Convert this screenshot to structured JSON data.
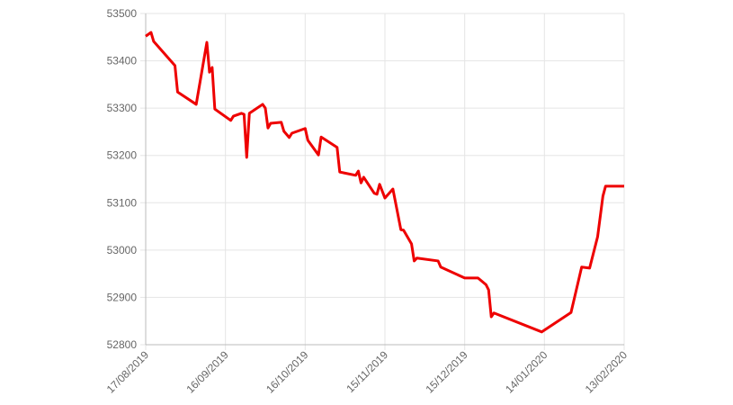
{
  "chart_data": {
    "type": "line",
    "x": [
      "2019-08-17",
      "2019-08-19",
      "2019-08-20",
      "2019-08-28",
      "2019-08-29",
      "2019-09-05",
      "2019-09-09",
      "2019-09-10",
      "2019-09-11",
      "2019-09-12",
      "2019-09-18",
      "2019-09-19",
      "2019-09-22",
      "2019-09-23",
      "2019-09-24",
      "2019-09-25",
      "2019-09-30",
      "2019-10-01",
      "2019-10-02",
      "2019-10-03",
      "2019-10-07",
      "2019-10-08",
      "2019-10-10",
      "2019-10-11",
      "2019-10-16",
      "2019-10-17",
      "2019-10-21",
      "2019-10-22",
      "2019-10-28",
      "2019-10-29",
      "2019-11-04",
      "2019-11-05",
      "2019-11-06",
      "2019-11-07",
      "2019-11-11",
      "2019-11-12",
      "2019-11-13",
      "2019-11-15",
      "2019-11-18",
      "2019-11-21",
      "2019-11-22",
      "2019-11-25",
      "2019-11-26",
      "2019-11-27",
      "2019-12-05",
      "2019-12-06",
      "2019-12-15",
      "2019-12-20",
      "2019-12-23",
      "2019-12-24",
      "2019-12-25",
      "2019-12-26",
      "2020-01-13",
      "2020-01-24",
      "2020-01-28",
      "2020-01-31",
      "2020-02-03",
      "2020-02-05",
      "2020-02-06",
      "2020-02-13"
    ],
    "series": [
      {
        "color": "#ee0000",
        "values": [
          53452,
          53460,
          53441,
          53390,
          53334,
          53308,
          53439,
          53376,
          53386,
          53298,
          53274,
          53283,
          53289,
          53287,
          53196,
          53289,
          53308,
          53300,
          53258,
          53268,
          53270,
          53251,
          53238,
          53247,
          53257,
          53232,
          53201,
          53239,
          53217,
          53165,
          53158,
          53167,
          53142,
          53154,
          53120,
          53118,
          53139,
          53110,
          53129,
          53043,
          53042,
          53013,
          52977,
          52983,
          52977,
          52964,
          52941,
          52941,
          52927,
          52916,
          52859,
          52867,
          52827,
          52868,
          52964,
          52962,
          53028,
          53114,
          53135,
          53135
        ]
      }
    ],
    "xlim": [
      "2019-08-17",
      "2020-02-13"
    ],
    "xticks": [
      {
        "value": "2019-08-17",
        "label": "17/08/2019"
      },
      {
        "value": "2019-09-16",
        "label": "16/09/2019"
      },
      {
        "value": "2019-10-16",
        "label": "16/10/2019"
      },
      {
        "value": "2019-11-15",
        "label": "15/11/2019"
      },
      {
        "value": "2019-12-15",
        "label": "15/12/2019"
      },
      {
        "value": "2020-01-14",
        "label": "14/01/2020"
      },
      {
        "value": "2020-02-13",
        "label": "13/02/2020"
      }
    ],
    "ylim": [
      52800,
      53500
    ],
    "yticks": [
      52800,
      52900,
      53000,
      53100,
      53200,
      53300,
      53400,
      53500
    ],
    "grid": true
  }
}
